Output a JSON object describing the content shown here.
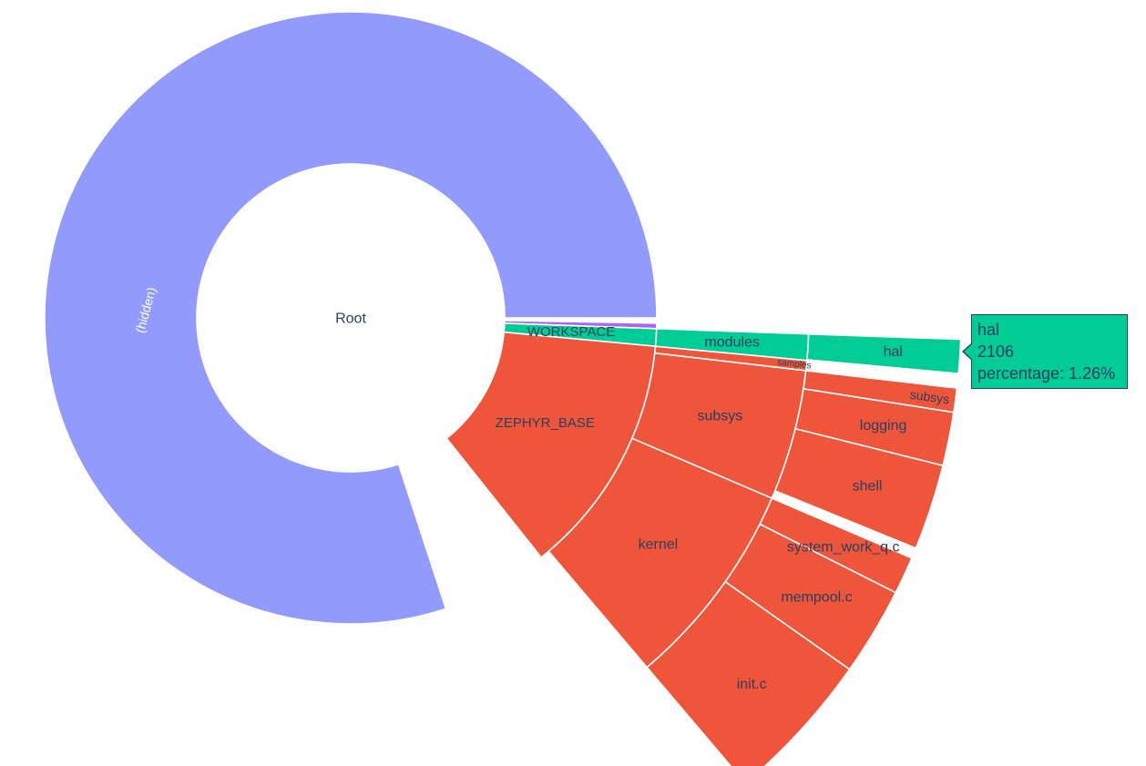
{
  "chart_data": {
    "type": "sunburst",
    "colors": {
      "hidden": "#929bfc",
      "workspace": "#00cc96",
      "zephyr": "#ef553b",
      "purple": "#ab63fa",
      "text_dark": "#2a3f5f",
      "text_light": "#ffffff"
    },
    "root": {
      "label": "Root"
    },
    "hidden": {
      "label": "(hidden)",
      "percent": 80.2
    },
    "sectors": [
      {
        "label": "",
        "color_key": "purple",
        "percent": 0.4
      },
      {
        "label": "WORKSPACE",
        "color_key": "workspace",
        "percent": 1.3,
        "children": [
          {
            "label": "modules",
            "percent": 1.3,
            "children": [
              {
                "label": "hal",
                "percent": 1.26
              }
            ]
          }
        ]
      },
      {
        "label": "ZEPHYR_BASE",
        "color_key": "zephyr",
        "percent": 18.1,
        "children": [
          {
            "label": "samples",
            "percent": 0.5
          },
          {
            "label": "subsys",
            "percent": 6.5,
            "children": [
              {
                "label": "subsys",
                "percent": 0.9
              },
              {
                "label": "logging",
                "percent": 2.0
              },
              {
                "label": "shell",
                "percent": 3.2
              }
            ]
          },
          {
            "label": "kernel",
            "percent": 10.4,
            "children": [
              {
                "label": "system_work_q.c",
                "percent": 1.4
              },
              {
                "label": "mempool.c",
                "percent": 3.3
              },
              {
                "label": "init.c",
                "percent": 5.7
              }
            ]
          }
        ]
      }
    ]
  },
  "tooltip": {
    "label": "hal",
    "value": "2106",
    "percentage": "percentage: 1.26%"
  }
}
